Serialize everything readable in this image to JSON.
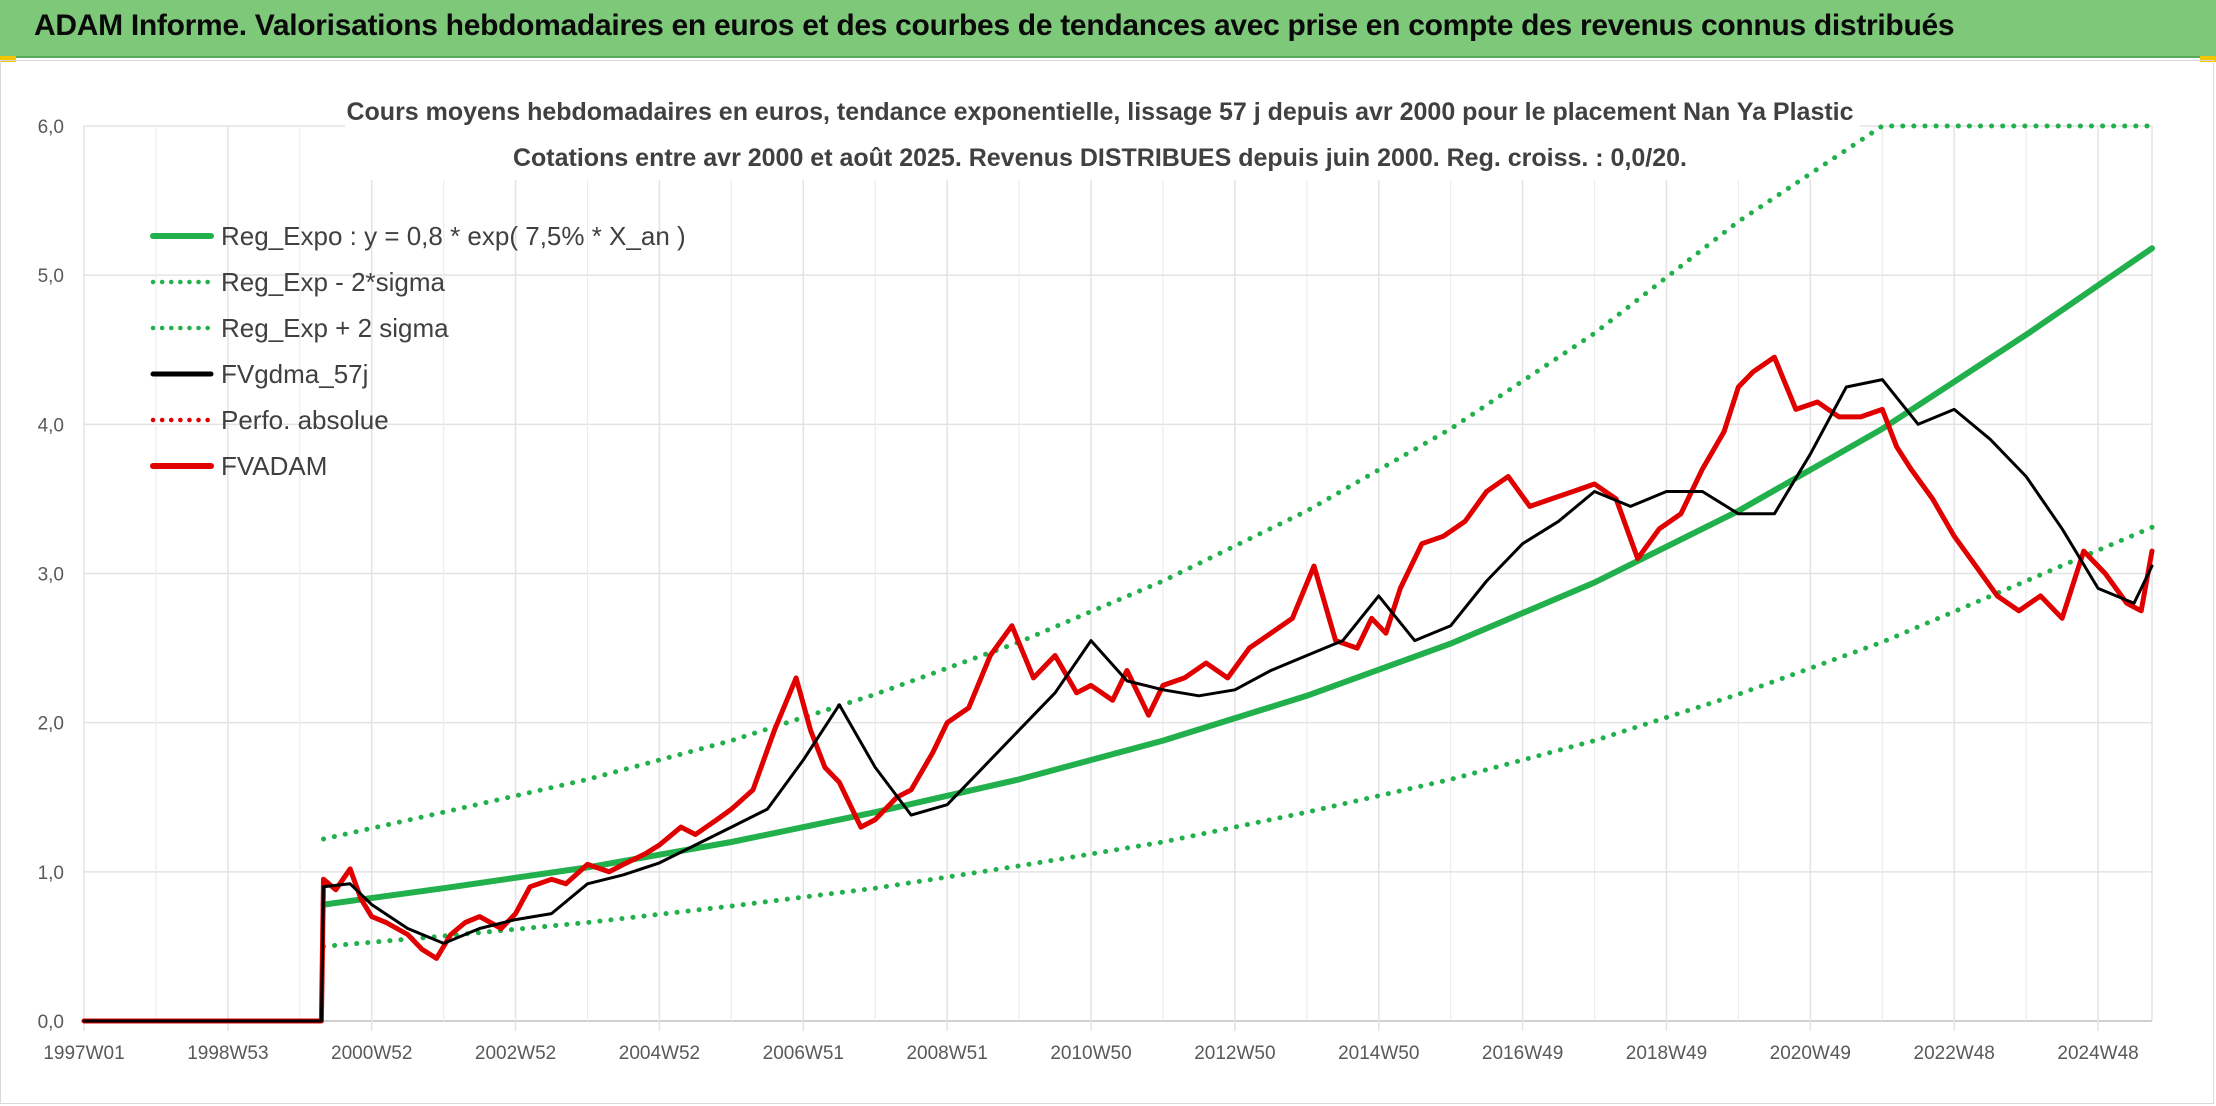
{
  "header": {
    "title": "ADAM Informe. Valorisations hebdomadaires en euros et des courbes de tendances avec prise en compte des revenus connus distribués"
  },
  "chart_data": {
    "type": "line",
    "title": "Cours moyens hebdomadaires en euros, tendance exponentielle, lissage 57 j depuis avr 2000 pour le placement Nan Ya Plastic",
    "subtitle": "Cotations entre avr 2000 et août 2025. Revenus DISTRIBUES depuis juin 2000. Reg. croiss. : 0,0/20.",
    "xlabel": "",
    "ylabel": "",
    "x_tick_labels": [
      "1997W01",
      "1998W53",
      "2000W52",
      "2002W52",
      "2004W52",
      "2006W51",
      "2008W51",
      "2010W50",
      "2012W50",
      "2014W50",
      "2016W49",
      "2018W49",
      "2020W49",
      "2022W48",
      "2024W48"
    ],
    "x_ticks": [
      1997.0,
      1999.0,
      2001.0,
      2003.0,
      2005.0,
      2007.0,
      2009.0,
      2011.0,
      2013.0,
      2015.0,
      2017.0,
      2019.0,
      2021.0,
      2023.0,
      2025.0
    ],
    "xlim": [
      1997.0,
      2025.75
    ],
    "y_tick_labels": [
      "0,0",
      "1,0",
      "2,0",
      "3,0",
      "4,0",
      "5,0",
      "6,0"
    ],
    "ylim": [
      0,
      6
    ],
    "grid": true,
    "legend_position": "top-left",
    "series": [
      {
        "name": "Reg_Expo : y = 0,8 * exp( 7,5% *  X_an )",
        "color": "#21b04b",
        "style": "solid",
        "x": [
          2000.33,
          2002,
          2004,
          2006,
          2008,
          2010,
          2012,
          2014,
          2016,
          2018,
          2020,
          2022,
          2024,
          2025.75
        ],
        "values": [
          0.78,
          0.89,
          1.03,
          1.2,
          1.4,
          1.62,
          1.88,
          2.18,
          2.53,
          2.94,
          3.42,
          3.97,
          4.6,
          5.18
        ]
      },
      {
        "name": "Reg_Exp - 2*sigma",
        "color": "#21b04b",
        "style": "dotted",
        "x": [
          2000.33,
          2002,
          2004,
          2006,
          2008,
          2010,
          2012,
          2014,
          2016,
          2018,
          2020,
          2022,
          2024,
          2025.75
        ],
        "values": [
          0.5,
          0.57,
          0.66,
          0.77,
          0.89,
          1.04,
          1.2,
          1.4,
          1.62,
          1.88,
          2.19,
          2.54,
          2.95,
          3.31
        ]
      },
      {
        "name": "Reg_Exp + 2 sigma",
        "color": "#21b04b",
        "style": "dotted",
        "x": [
          2000.33,
          2002,
          2004,
          2006,
          2008,
          2010,
          2012,
          2014,
          2016,
          2018,
          2020,
          2022,
          2024,
          2025.75
        ],
        "values": [
          1.22,
          1.4,
          1.62,
          1.88,
          2.19,
          2.54,
          2.95,
          3.42,
          3.97,
          4.61,
          5.36,
          6.0,
          6.0,
          6.0
        ]
      },
      {
        "name": "FVgdma_57j",
        "color": "#000000",
        "style": "solid",
        "x": [
          1997.0,
          2000.3,
          2000.33,
          2000.7,
          2001.0,
          2001.5,
          2002.0,
          2002.5,
          2003.0,
          2003.5,
          2004.0,
          2004.5,
          2005.0,
          2005.5,
          2006.0,
          2006.5,
          2007.0,
          2007.5,
          2008.0,
          2008.5,
          2009.0,
          2009.5,
          2010.0,
          2010.5,
          2011.0,
          2011.5,
          2012.0,
          2012.5,
          2013.0,
          2013.5,
          2014.0,
          2014.5,
          2015.0,
          2015.5,
          2016.0,
          2016.5,
          2017.0,
          2017.5,
          2018.0,
          2018.5,
          2019.0,
          2019.5,
          2020.0,
          2020.5,
          2021.0,
          2021.5,
          2022.0,
          2022.5,
          2023.0,
          2023.5,
          2024.0,
          2024.5,
          2025.0,
          2025.5,
          2025.75
        ],
        "values": [
          0.0,
          0.0,
          0.9,
          0.92,
          0.78,
          0.62,
          0.52,
          0.62,
          0.68,
          0.72,
          0.92,
          0.98,
          1.06,
          1.18,
          1.3,
          1.42,
          1.75,
          2.12,
          1.7,
          1.38,
          1.45,
          1.7,
          1.95,
          2.2,
          2.55,
          2.28,
          2.22,
          2.18,
          2.22,
          2.35,
          2.45,
          2.55,
          2.85,
          2.55,
          2.65,
          2.95,
          3.2,
          3.35,
          3.55,
          3.45,
          3.55,
          3.55,
          3.4,
          3.4,
          3.8,
          4.25,
          4.3,
          4.0,
          4.1,
          3.9,
          3.65,
          3.3,
          2.9,
          2.8,
          3.05
        ]
      },
      {
        "name": "Perfo. absolue",
        "color": "#e00000",
        "style": "dotted",
        "x": [],
        "values": []
      },
      {
        "name": "FVADAM",
        "color": "#e00000",
        "style": "solid",
        "x": [
          1997.0,
          2000.3,
          2000.33,
          2000.5,
          2000.7,
          2000.85,
          2001.0,
          2001.2,
          2001.5,
          2001.7,
          2001.9,
          2002.1,
          2002.3,
          2002.5,
          2002.8,
          2003.0,
          2003.2,
          2003.5,
          2003.7,
          2004.0,
          2004.3,
          2004.5,
          2004.8,
          2005.0,
          2005.3,
          2005.5,
          2005.8,
          2006.0,
          2006.3,
          2006.6,
          2006.9,
          2007.1,
          2007.3,
          2007.5,
          2007.8,
          2008.0,
          2008.3,
          2008.5,
          2008.8,
          2009.0,
          2009.3,
          2009.6,
          2009.9,
          2010.2,
          2010.5,
          2010.8,
          2011.0,
          2011.3,
          2011.5,
          2011.8,
          2012.0,
          2012.3,
          2012.6,
          2012.9,
          2013.2,
          2013.5,
          2013.8,
          2014.1,
          2014.4,
          2014.7,
          2014.9,
          2015.1,
          2015.3,
          2015.6,
          2015.9,
          2016.2,
          2016.5,
          2016.8,
          2017.1,
          2017.4,
          2017.7,
          2018.0,
          2018.3,
          2018.6,
          2018.9,
          2019.2,
          2019.5,
          2019.8,
          2020.0,
          2020.2,
          2020.5,
          2020.8,
          2021.1,
          2021.4,
          2021.7,
          2022.0,
          2022.2,
          2022.4,
          2022.7,
          2023.0,
          2023.3,
          2023.6,
          2023.9,
          2024.2,
          2024.5,
          2024.8,
          2025.1,
          2025.4,
          2025.6,
          2025.75
        ],
        "values": [
          0.0,
          0.0,
          0.95,
          0.88,
          1.02,
          0.82,
          0.7,
          0.66,
          0.58,
          0.48,
          0.42,
          0.58,
          0.66,
          0.7,
          0.62,
          0.72,
          0.9,
          0.95,
          0.92,
          1.05,
          1.0,
          1.05,
          1.12,
          1.18,
          1.3,
          1.25,
          1.35,
          1.42,
          1.55,
          1.95,
          2.3,
          1.95,
          1.7,
          1.6,
          1.3,
          1.35,
          1.5,
          1.55,
          1.8,
          2.0,
          2.1,
          2.45,
          2.65,
          2.3,
          2.45,
          2.2,
          2.25,
          2.15,
          2.35,
          2.05,
          2.25,
          2.3,
          2.4,
          2.3,
          2.5,
          2.6,
          2.7,
          3.05,
          2.55,
          2.5,
          2.7,
          2.6,
          2.9,
          3.2,
          3.25,
          3.35,
          3.55,
          3.65,
          3.45,
          3.5,
          3.55,
          3.6,
          3.5,
          3.1,
          3.3,
          3.4,
          3.7,
          3.95,
          4.25,
          4.35,
          4.45,
          4.1,
          4.15,
          4.05,
          4.05,
          4.1,
          3.85,
          3.7,
          3.5,
          3.25,
          3.05,
          2.85,
          2.75,
          2.85,
          2.7,
          3.15,
          3.0,
          2.8,
          2.75,
          3.15
        ]
      }
    ]
  }
}
